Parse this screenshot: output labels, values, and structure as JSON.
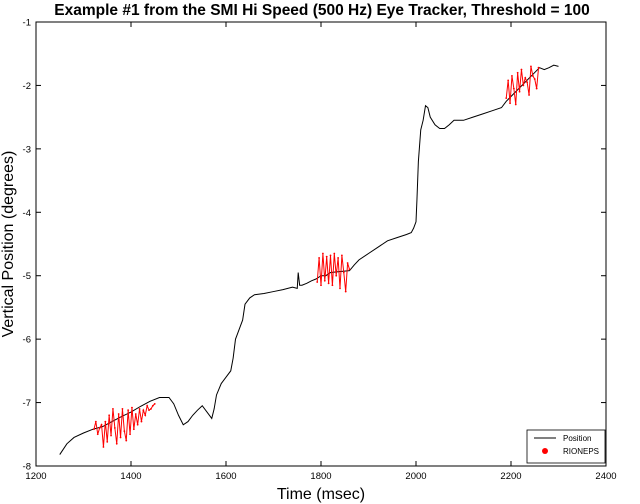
{
  "chart_data": {
    "type": "line",
    "title": "Example #1 from the SMI Hi Speed (500 Hz) Eye Tracker, Threshold = 100",
    "xlabel": "Time (msec)",
    "ylabel": "Vertical Position (degrees)",
    "xlim": [
      1200,
      2400
    ],
    "ylim": [
      -8,
      -1
    ],
    "xticks": [
      1200,
      1400,
      1600,
      1800,
      2000,
      2200,
      2400
    ],
    "yticks": [
      -8,
      -7,
      -6,
      -5,
      -4,
      -3,
      -2,
      -1
    ],
    "grid": false,
    "legend_position": "bottom-right",
    "colors": {
      "position": "#000000",
      "rioneps": "#ff0000"
    },
    "series": [
      {
        "name": "Position",
        "style": "line",
        "x": [
          1250,
          1265,
          1280,
          1300,
          1320,
          1340,
          1360,
          1380,
          1400,
          1420,
          1440,
          1460,
          1480,
          1490,
          1500,
          1510,
          1520,
          1530,
          1540,
          1550,
          1560,
          1570,
          1575,
          1580,
          1590,
          1600,
          1610,
          1615,
          1620,
          1625,
          1630,
          1635,
          1640,
          1650,
          1660,
          1680,
          1700,
          1720,
          1740,
          1750,
          1752,
          1755,
          1760,
          1770,
          1780,
          1790,
          1800,
          1810,
          1820,
          1860,
          1870,
          1880,
          1900,
          1920,
          1940,
          1960,
          1980,
          1990,
          1995,
          2000,
          2002,
          2005,
          2010,
          2015,
          2020,
          2025,
          2030,
          2040,
          2050,
          2060,
          2070,
          2080,
          2100,
          2120,
          2140,
          2160,
          2180,
          2190,
          2260,
          2270,
          2280,
          2290,
          2300
        ],
        "y": [
          -7.82,
          -7.65,
          -7.55,
          -7.48,
          -7.42,
          -7.38,
          -7.3,
          -7.22,
          -7.15,
          -7.06,
          -6.98,
          -6.92,
          -6.92,
          -7.02,
          -7.2,
          -7.35,
          -7.3,
          -7.2,
          -7.12,
          -7.05,
          -7.15,
          -7.25,
          -7.1,
          -6.88,
          -6.7,
          -6.6,
          -6.5,
          -6.3,
          -6.0,
          -5.9,
          -5.8,
          -5.7,
          -5.45,
          -5.35,
          -5.3,
          -5.28,
          -5.25,
          -5.22,
          -5.18,
          -5.2,
          -4.95,
          -5.15,
          -5.15,
          -5.12,
          -5.08,
          -5.05,
          -5.0,
          -5.0,
          -4.95,
          -4.92,
          -4.83,
          -4.75,
          -4.65,
          -4.55,
          -4.45,
          -4.4,
          -4.35,
          -4.32,
          -4.25,
          -4.15,
          -3.8,
          -3.2,
          -2.7,
          -2.55,
          -2.32,
          -2.35,
          -2.5,
          -2.62,
          -2.68,
          -2.68,
          -2.62,
          -2.55,
          -2.55,
          -2.5,
          -2.45,
          -2.4,
          -2.35,
          -2.25,
          -1.72,
          -1.75,
          -1.72,
          -1.68,
          -1.7
        ]
      },
      {
        "name": "RIONEPS",
        "style": "marker",
        "x": [
          1322,
          1326,
          1330,
          1334,
          1338,
          1342,
          1346,
          1350,
          1354,
          1358,
          1362,
          1366,
          1370,
          1374,
          1378,
          1382,
          1386,
          1390,
          1394,
          1398,
          1402,
          1406,
          1410,
          1414,
          1418,
          1422,
          1426,
          1430,
          1434,
          1438,
          1442,
          1446,
          1450,
          1792,
          1796,
          1800,
          1804,
          1808,
          1812,
          1816,
          1820,
          1824,
          1828,
          1832,
          1836,
          1840,
          1844,
          1848,
          1852,
          1856,
          1860,
          2190,
          2194,
          2198,
          2202,
          2206,
          2210,
          2214,
          2218,
          2222,
          2226,
          2230,
          2234,
          2238,
          2242,
          2246,
          2250,
          2254,
          2258
        ],
        "y": [
          -7.42,
          -7.3,
          -7.5,
          -7.4,
          -7.35,
          -7.7,
          -7.3,
          -7.62,
          -7.2,
          -7.52,
          -7.1,
          -7.4,
          -7.65,
          -7.18,
          -7.55,
          -7.1,
          -7.45,
          -7.6,
          -7.12,
          -7.5,
          -7.08,
          -7.42,
          -7.18,
          -7.35,
          -7.1,
          -7.3,
          -7.12,
          -7.2,
          -7.05,
          -7.12,
          -7.1,
          -7.05,
          -7.02,
          -5.1,
          -4.72,
          -5.15,
          -4.65,
          -5.08,
          -4.7,
          -5.12,
          -4.68,
          -5.15,
          -4.65,
          -5.0,
          -4.72,
          -5.2,
          -4.68,
          -4.95,
          -5.25,
          -4.8,
          -4.9,
          -2.2,
          -1.92,
          -2.28,
          -1.85,
          -2.05,
          -2.3,
          -1.8,
          -2.1,
          -1.75,
          -2.0,
          -1.88,
          -1.95,
          -2.15,
          -1.7,
          -1.85,
          -1.9,
          -2.05,
          -1.72
        ]
      }
    ]
  }
}
